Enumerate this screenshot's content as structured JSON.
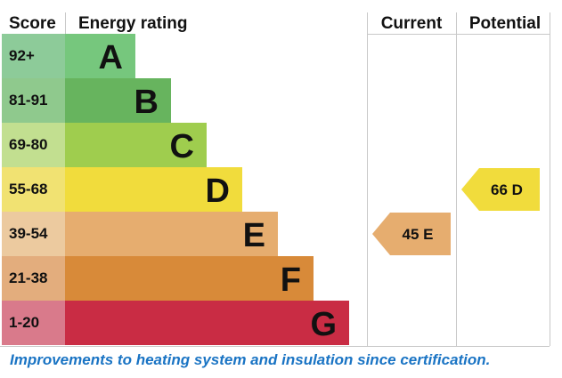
{
  "headers": {
    "score": "Score",
    "rating": "Energy rating",
    "current": "Current",
    "potential": "Potential"
  },
  "chart_data": {
    "type": "bar",
    "title": "",
    "bands": [
      {
        "letter": "A",
        "score": "92+",
        "color": "#76c77d",
        "scoreColor": "#8dcb99"
      },
      {
        "letter": "B",
        "score": "81-91",
        "color": "#67b45e",
        "scoreColor": "#8fc98d"
      },
      {
        "letter": "C",
        "score": "69-80",
        "color": "#9fcd4e",
        "scoreColor": "#c2df90"
      },
      {
        "letter": "D",
        "score": "55-68",
        "color": "#f1dc3c",
        "scoreColor": "#f1e272"
      },
      {
        "letter": "E",
        "score": "39-54",
        "color": "#e6ad6f",
        "scoreColor": "#ecca9f"
      },
      {
        "letter": "F",
        "score": "21-38",
        "color": "#d88a39",
        "scoreColor": "#e3ad7d"
      },
      {
        "letter": "G",
        "score": "1-20",
        "color": "#c92c44",
        "scoreColor": "#d97a8b"
      }
    ],
    "current": {
      "value": 45,
      "letter": "E",
      "label": "45  E",
      "color": "#e6ad6f"
    },
    "potential": {
      "value": 66,
      "letter": "D",
      "label": "66  D",
      "color": "#f1dc3c"
    }
  },
  "footer": "Improvements to heating system and insulation since certification."
}
